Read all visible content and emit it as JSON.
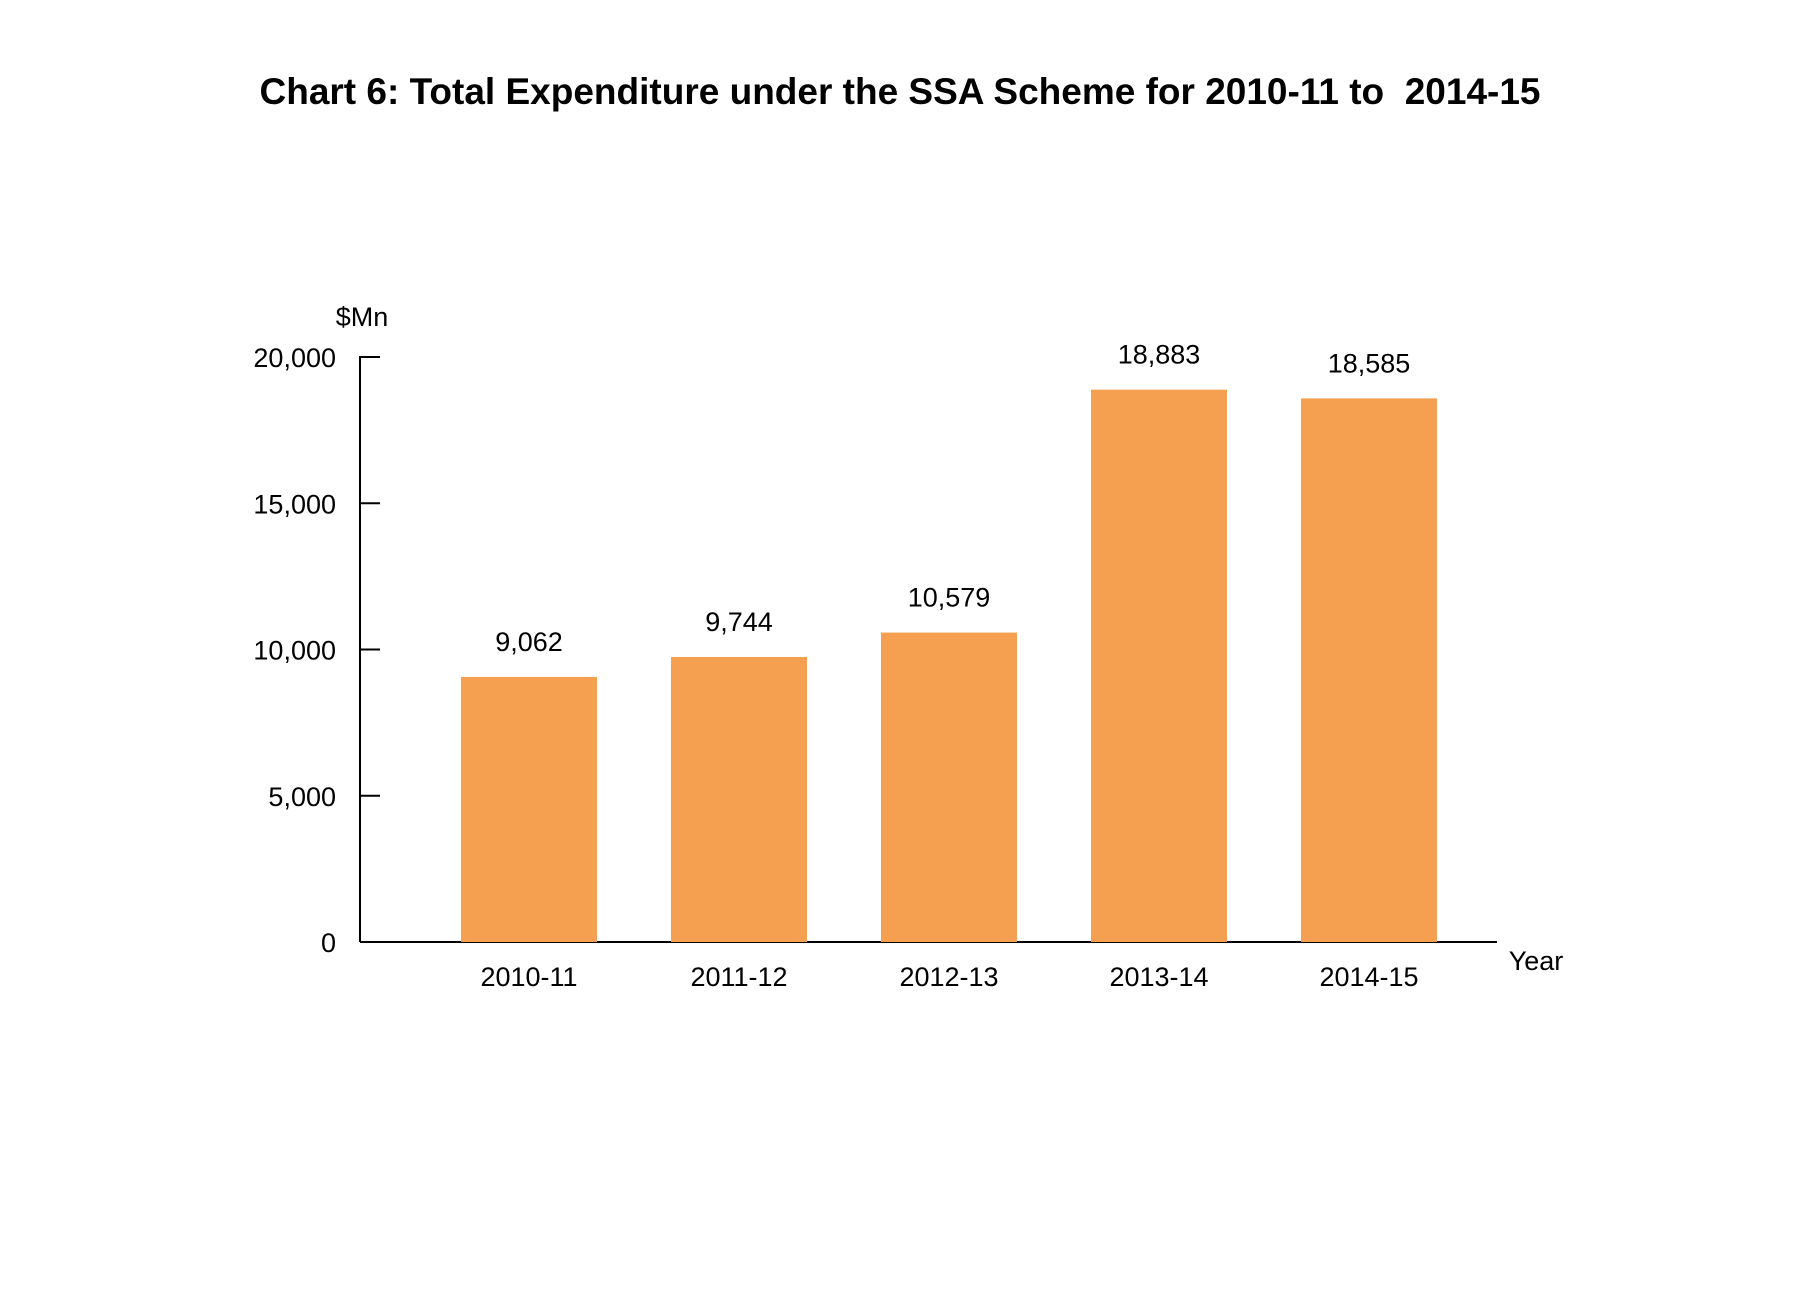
{
  "chart_data": {
    "type": "bar",
    "title": "Chart 6: Total Expenditure under the SSA Scheme for 2010-11 to  2014-15",
    "ylabel": "$Mn",
    "xlabel": "Year",
    "categories": [
      "2010-11",
      "2011-12",
      "2012-13",
      "2013-14",
      "2014-15"
    ],
    "values": [
      9062,
      9744,
      10579,
      18883,
      18585
    ],
    "data_labels": [
      "9,062",
      "9,744",
      "10,579",
      "18,883",
      "18,585"
    ],
    "yticks": [
      0,
      5000,
      10000,
      15000,
      20000
    ],
    "ytick_labels": [
      "0",
      "5,000",
      "10,000",
      "15,000",
      "20,000"
    ],
    "ylim": [
      0,
      20000
    ],
    "grid": false,
    "legend": "none",
    "bar_color": "#F5A050"
  }
}
